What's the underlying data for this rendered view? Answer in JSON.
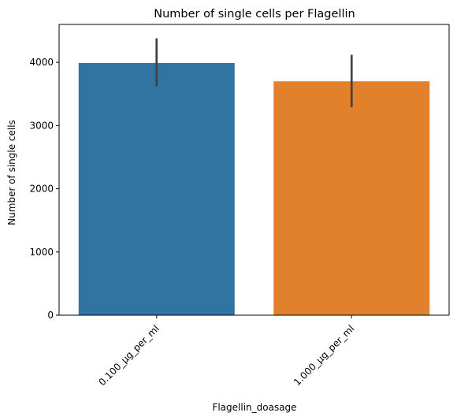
{
  "chart_data": {
    "type": "bar",
    "title": "Number of single cells per Flagellin",
    "xlabel": "Flagellin_doasage",
    "ylabel": "Number of single cells",
    "categories": [
      "0.100_µg_per_ml",
      "1.000_µg_per_ml"
    ],
    "values": [
      3990,
      3700
    ],
    "error_bars": [
      [
        3620,
        4380
      ],
      [
        3290,
        4120
      ]
    ],
    "colors": [
      "#3274a1",
      "#e1812c"
    ],
    "error_color": "#424242",
    "ylim": [
      0,
      4600
    ],
    "yticks": [
      0,
      1000,
      2000,
      3000,
      4000
    ],
    "grid": false,
    "legend": "none"
  }
}
